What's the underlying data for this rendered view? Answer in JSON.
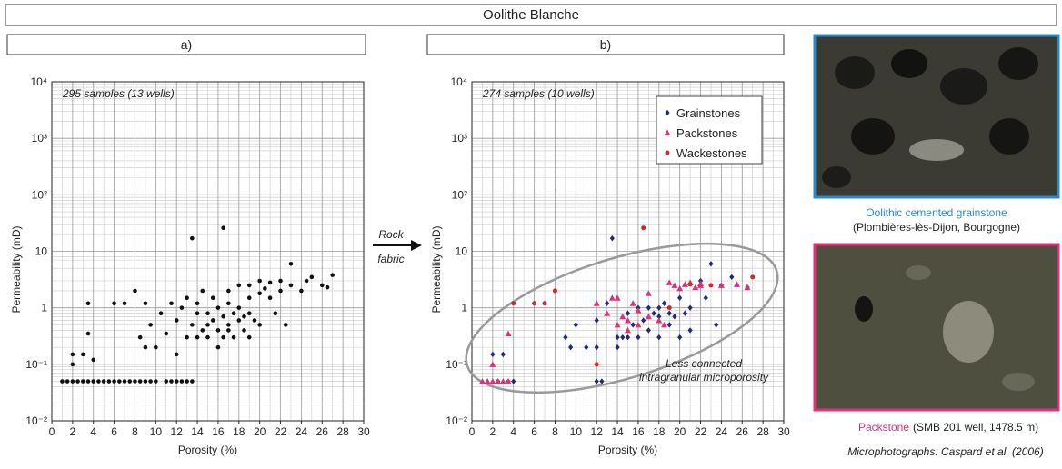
{
  "header": {
    "title": "Oolithe Blanche"
  },
  "chart_data": [
    {
      "type": "scatter",
      "title": "a)",
      "annotation": "295 samples (13 wells)",
      "x_label": "Porosity (%)",
      "y_label": "Permeability (mD)",
      "xlim": [
        0,
        30
      ],
      "ylim": [
        0.01,
        10000
      ],
      "log_y": true,
      "grid": true,
      "xticks": [
        0,
        2,
        4,
        6,
        8,
        10,
        12,
        14,
        16,
        18,
        20,
        22,
        24,
        26,
        28,
        30
      ],
      "yticks": [
        {
          "value": 0.01,
          "label": "10⁻²"
        },
        {
          "value": 0.1,
          "label": "10⁻¹"
        },
        1,
        10,
        {
          "value": 100,
          "label": "10²"
        },
        {
          "value": 1000,
          "label": "10³"
        },
        {
          "value": 10000,
          "label": "10⁴"
        }
      ],
      "color": "#111111",
      "x": [
        1,
        1.5,
        2,
        2.5,
        3,
        3.5,
        4,
        4.5,
        5,
        5.5,
        6,
        6.5,
        7,
        7.5,
        8,
        8.5,
        9,
        9.5,
        10,
        11,
        11.5,
        12,
        12.5,
        13,
        13.5,
        2,
        2,
        3,
        3.5,
        3.5,
        4,
        6,
        7,
        8,
        8.5,
        9,
        9,
        9.5,
        10,
        10.5,
        11,
        11.5,
        12,
        12,
        12.5,
        13,
        13,
        13.5,
        13.5,
        14,
        14,
        14,
        14.5,
        14.5,
        15,
        15,
        15,
        15.5,
        15.5,
        16,
        16,
        16,
        16.5,
        16.5,
        16.5,
        17,
        17,
        17,
        17.5,
        17.5,
        18,
        18,
        18,
        18.5,
        18.5,
        19,
        19,
        19,
        19.5,
        20,
        20,
        20,
        20.5,
        21,
        21,
        21.5,
        22,
        22,
        22.5,
        23,
        23,
        24,
        24.5,
        25,
        26,
        26.5,
        27,
        19,
        17
      ],
      "values": [
        0.05,
        0.05,
        0.05,
        0.05,
        0.05,
        0.05,
        0.05,
        0.05,
        0.05,
        0.05,
        0.05,
        0.05,
        0.05,
        0.05,
        0.05,
        0.05,
        0.05,
        0.05,
        0.05,
        0.05,
        0.05,
        0.05,
        0.05,
        0.05,
        0.05,
        0.15,
        0.1,
        0.15,
        0.35,
        1.2,
        0.12,
        1.2,
        1.2,
        2,
        0.3,
        0.2,
        1.2,
        0.5,
        0.2,
        0.8,
        0.35,
        1.2,
        0.15,
        0.6,
        1,
        0.3,
        1.5,
        17,
        0.5,
        0.3,
        0.8,
        1.2,
        0.4,
        2,
        0.5,
        0.3,
        0.8,
        0.6,
        1.5,
        0.4,
        0.2,
        1,
        26,
        0.7,
        0.3,
        0.5,
        1.2,
        2,
        0.8,
        0.3,
        0.6,
        1,
        2.5,
        0.4,
        0.7,
        0.8,
        1.5,
        2.5,
        0.6,
        3,
        1.8,
        0.5,
        2.2,
        1.5,
        2.8,
        0.8,
        3,
        2,
        0.5,
        6,
        2.5,
        2,
        3,
        3.5,
        2.5,
        2.3,
        3.8,
        0.3,
        0.4
      ]
    },
    {
      "type": "scatter",
      "title": "b)",
      "annotation": "274 samples (10 wells)",
      "x_label": "Porosity (%)",
      "y_label": "Permeability (mD)",
      "note": [
        "Less connected",
        "intragranular microporosity"
      ],
      "xlim": [
        0,
        30
      ],
      "ylim": [
        0.01,
        10000
      ],
      "log_y": true,
      "grid": true,
      "legend": "upper right",
      "xticks": [
        0,
        2,
        4,
        6,
        8,
        10,
        12,
        14,
        16,
        18,
        20,
        22,
        24,
        26,
        28,
        30
      ],
      "yticks": [
        {
          "value": 0.01,
          "label": "10⁻²"
        },
        {
          "value": 0.1,
          "label": "10⁻¹"
        },
        1,
        10,
        {
          "value": 100,
          "label": "10²"
        },
        {
          "value": 1000,
          "label": "10³"
        },
        {
          "value": 10000,
          "label": "10⁴"
        }
      ],
      "series": [
        {
          "name": "Grainstones",
          "color": "#232a7c",
          "marker": "diamond",
          "x": [
            2,
            2.5,
            3,
            3.5,
            4,
            9,
            9.5,
            10,
            11,
            12,
            12,
            12,
            12.5,
            13,
            13.5,
            14,
            14,
            14.5,
            15,
            15,
            15.5,
            16,
            16,
            16.5,
            17,
            17,
            17.5,
            18,
            18,
            18,
            18.5,
            19,
            19,
            19.5,
            20,
            20,
            20.5,
            21,
            21,
            22,
            22.5,
            23,
            23.5,
            24,
            25,
            26.5
          ],
          "values": [
            0.15,
            0.05,
            0.15,
            0.05,
            0.05,
            0.3,
            0.2,
            0.5,
            0.2,
            0.05,
            0.2,
            0.6,
            0.05,
            1.2,
            17,
            0.3,
            0.2,
            0.3,
            0.8,
            0.3,
            0.5,
            0.3,
            1,
            0.6,
            0.4,
            1,
            0.8,
            0.7,
            1,
            0.3,
            1.2,
            0.8,
            0.5,
            0.7,
            1.5,
            0.3,
            0.8,
            1,
            0.4,
            3,
            1.5,
            6,
            0.5,
            2.5,
            3.5,
            2.3
          ]
        },
        {
          "name": "Packstones",
          "color": "#e0307a",
          "marker": "triangle",
          "x": [
            1,
            1.5,
            2,
            2.5,
            3,
            3.5,
            3.5,
            2,
            12,
            13,
            13.5,
            14,
            14.5,
            15,
            15.5,
            16,
            16,
            17,
            18,
            18.5,
            19,
            19.5,
            20,
            20.5,
            21,
            21.5,
            22,
            22,
            24,
            25.5,
            26.5,
            17,
            15,
            14
          ],
          "values": [
            0.05,
            0.05,
            0.05,
            0.05,
            0.05,
            0.05,
            0.35,
            0.1,
            1.2,
            0.8,
            1.5,
            0.5,
            0.7,
            0.6,
            1.2,
            0.5,
            0.9,
            1.8,
            0.6,
            0.5,
            2.8,
            2.5,
            2.2,
            2.6,
            2.8,
            2.3,
            2.5,
            2.7,
            2.5,
            2.6,
            2.3,
            0.7,
            0.4,
            1.5
          ]
        },
        {
          "name": "Wackestones",
          "color": "#d8232a",
          "marker": "circle",
          "x": [
            4,
            6,
            7,
            8,
            12,
            16.5,
            19,
            21,
            23,
            27
          ],
          "values": [
            1.2,
            1.2,
            1.2,
            2,
            0.1,
            26,
            1,
            2.6,
            2.5,
            3.5
          ]
        }
      ]
    }
  ],
  "arrow": {
    "top": "Rock",
    "bottom": "fabric"
  },
  "photos": [
    {
      "caption": "Oolithic cemented grainstone",
      "location": "(Plombières-lès-Dijon, Bourgogne)"
    },
    {
      "caption": "Packstone",
      "location": "(SMB 201 well, 1478.5 m)"
    }
  ],
  "credit": "Microphotographs: Caspard et al. (2006)"
}
